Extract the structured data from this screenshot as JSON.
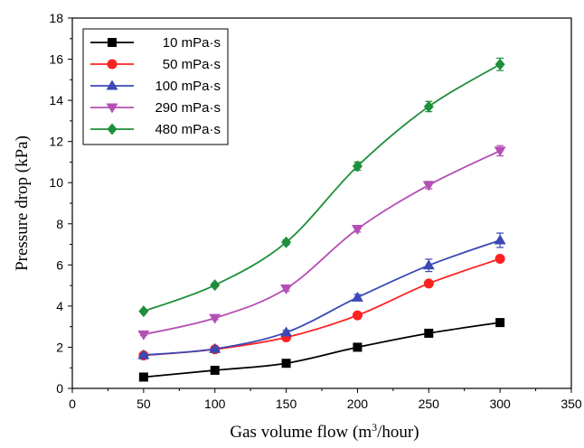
{
  "chart_data": {
    "type": "line",
    "title": "",
    "xlabel": "Gas volume flow (m",
    "xlabel_sup": "3",
    "xlabel_tail": "/hour)",
    "ylabel": "Pressure drop (kPa)",
    "xlim": [
      0,
      350
    ],
    "ylim": [
      0,
      18
    ],
    "x_ticks": [
      0,
      50,
      100,
      150,
      200,
      250,
      300,
      350
    ],
    "y_ticks": [
      0,
      2,
      4,
      6,
      8,
      10,
      12,
      14,
      16,
      18
    ],
    "grid": false,
    "legend_position": "top-left",
    "x": [
      50,
      100,
      150,
      200,
      250,
      300
    ],
    "series": [
      {
        "name": "10 mPa·s",
        "color": "#000000",
        "marker": "square",
        "values": [
          0.55,
          0.88,
          1.22,
          2.0,
          2.68,
          3.2
        ],
        "errors": [
          0.05,
          0.05,
          0.06,
          0.08,
          0.1,
          0.12
        ]
      },
      {
        "name": "50 mPa·s",
        "color": "#ff2020",
        "marker": "circle",
        "values": [
          1.6,
          1.9,
          2.48,
          3.55,
          5.1,
          6.3
        ],
        "errors": [
          0.05,
          0.06,
          0.08,
          0.1,
          0.12,
          0.15
        ]
      },
      {
        "name": "100 mPa·s",
        "color": "#3b48b5",
        "marker": "triangle-up",
        "values": [
          1.62,
          1.92,
          2.72,
          4.42,
          5.98,
          7.2
        ],
        "errors": [
          0.06,
          0.08,
          0.1,
          0.15,
          0.3,
          0.35
        ]
      },
      {
        "name": "290 mPa·s",
        "color": "#b44fb4",
        "marker": "triangle-down",
        "values": [
          2.62,
          3.42,
          4.85,
          7.75,
          9.88,
          11.55
        ],
        "errors": [
          0.06,
          0.08,
          0.12,
          0.15,
          0.18,
          0.25
        ]
      },
      {
        "name": "480 mPa·s",
        "color": "#1e8f3a",
        "marker": "diamond",
        "values": [
          3.75,
          5.02,
          7.1,
          10.8,
          13.7,
          15.75
        ],
        "errors": [
          0.06,
          0.08,
          0.12,
          0.2,
          0.25,
          0.3
        ]
      }
    ]
  }
}
